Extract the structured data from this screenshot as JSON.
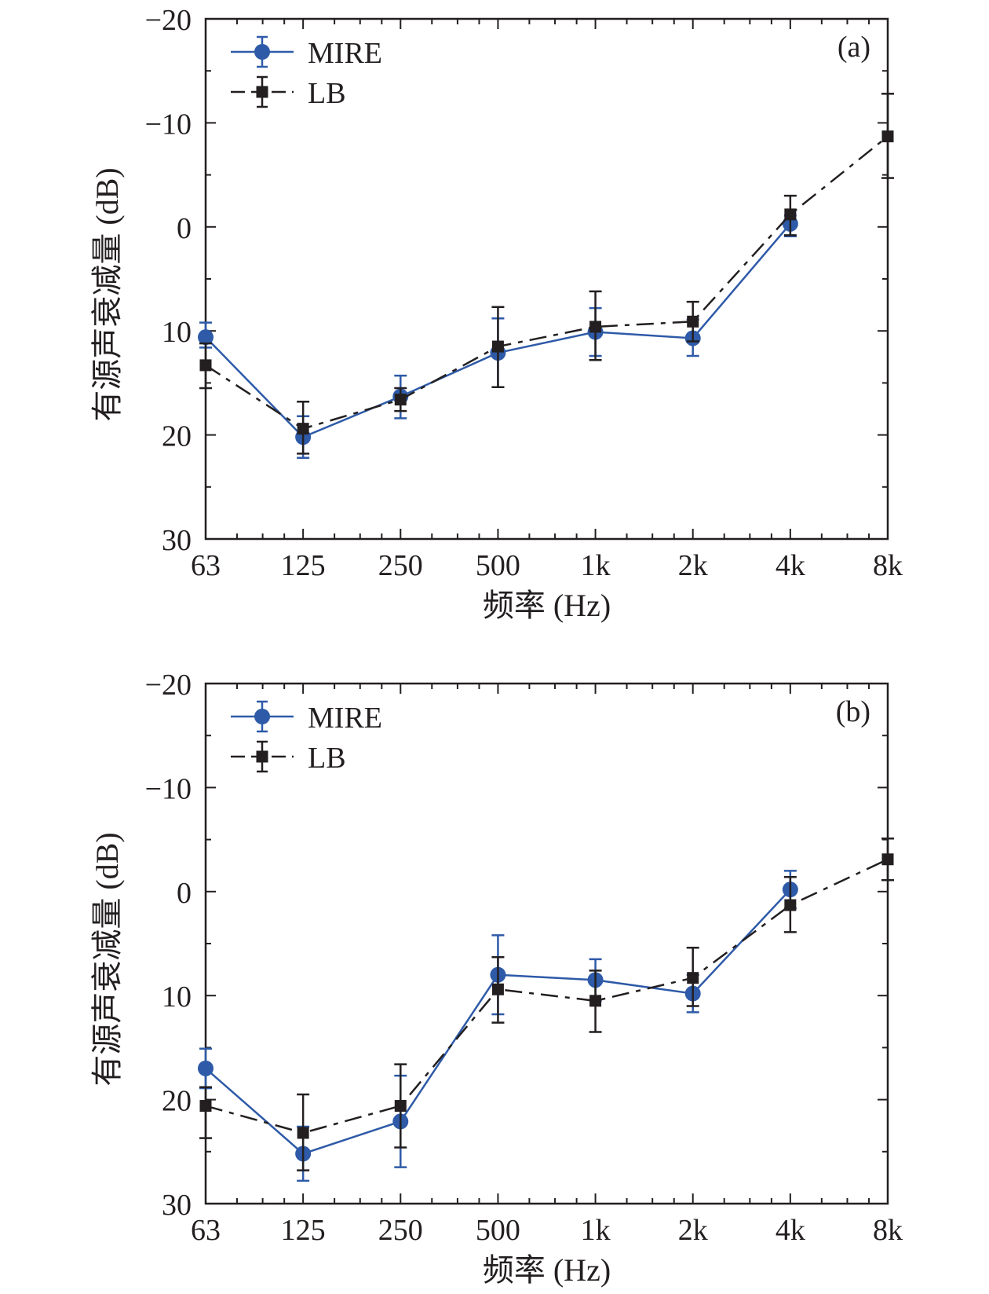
{
  "colors": {
    "mire": "#2e5aa8",
    "lb": "#231f20",
    "axis": "#231f20"
  },
  "chart_data": [
    {
      "type": "line",
      "panel_label": "(a)",
      "xlabel": "频率 (Hz)",
      "ylabel": "有源声衰减量 (dB)",
      "categories": [
        "63",
        "125",
        "250",
        "500",
        "1k",
        "2k",
        "4k",
        "8k"
      ],
      "yticks": [
        "−20",
        "−10",
        "0",
        "10",
        "20",
        "30"
      ],
      "ylim": [
        -20,
        30
      ],
      "y_inverted": true,
      "x_scale": "log2",
      "grid": false,
      "legend_position": "top-left",
      "series": [
        {
          "name": "MIRE",
          "style": "solid",
          "marker": "circle",
          "x": [
            "63",
            "125",
            "250",
            "500",
            "1k",
            "2k",
            "4k"
          ],
          "values": [
            10.6,
            20.2,
            16.3,
            12.1,
            10.1,
            10.7,
            -0.3
          ],
          "err_low": [
            9.2,
            18.2,
            14.3,
            8.8,
            7.8,
            8.9,
            -1.1
          ],
          "err_high": [
            11.6,
            22.2,
            18.4,
            15.4,
            12.4,
            12.4,
            0.9
          ]
        },
        {
          "name": "LB",
          "style": "dashed",
          "marker": "square",
          "x": [
            "63",
            "125",
            "250",
            "500",
            "1k",
            "2k",
            "4k",
            "8k"
          ],
          "values": [
            13.3,
            19.4,
            16.6,
            11.5,
            9.6,
            9.1,
            -1.2,
            -8.7
          ],
          "err_low": [
            11.2,
            16.8,
            15.5,
            7.7,
            6.2,
            7.2,
            -3.0,
            -12.8
          ],
          "err_high": [
            15.5,
            21.8,
            17.7,
            15.4,
            12.8,
            11.0,
            0.8,
            -4.7
          ]
        }
      ]
    },
    {
      "type": "line",
      "panel_label": "(b)",
      "xlabel": "频率 (Hz)",
      "ylabel": "有源声衰减量 (dB)",
      "categories": [
        "63",
        "125",
        "250",
        "500",
        "1k",
        "2k",
        "4k",
        "8k"
      ],
      "yticks": [
        "−20",
        "−10",
        "0",
        "10",
        "20",
        "30"
      ],
      "ylim": [
        -20,
        30
      ],
      "y_inverted": true,
      "x_scale": "log2",
      "grid": false,
      "legend_position": "top-left",
      "series": [
        {
          "name": "MIRE",
          "style": "solid",
          "marker": "circle",
          "x": [
            "63",
            "125",
            "250",
            "500",
            "1k",
            "2k",
            "4k"
          ],
          "values": [
            17.0,
            25.2,
            22.1,
            8.0,
            8.5,
            9.8,
            -0.2
          ],
          "err_low": [
            15.1,
            22.6,
            17.7,
            4.2,
            6.5,
            8.0,
            -2.0
          ],
          "err_high": [
            18.9,
            27.8,
            26.5,
            11.8,
            10.5,
            11.6,
            1.6
          ]
        },
        {
          "name": "LB",
          "style": "dashed",
          "marker": "square",
          "x": [
            "63",
            "125",
            "250",
            "500",
            "1k",
            "2k",
            "4k",
            "8k"
          ],
          "values": [
            20.6,
            23.2,
            20.6,
            9.4,
            10.5,
            8.3,
            1.3,
            -3.1
          ],
          "err_low": [
            18.8,
            19.5,
            16.6,
            6.3,
            7.6,
            5.4,
            -1.4,
            -5.1
          ],
          "err_high": [
            23.7,
            26.8,
            24.6,
            12.6,
            13.5,
            11.0,
            3.9,
            -1.1
          ]
        }
      ]
    }
  ]
}
